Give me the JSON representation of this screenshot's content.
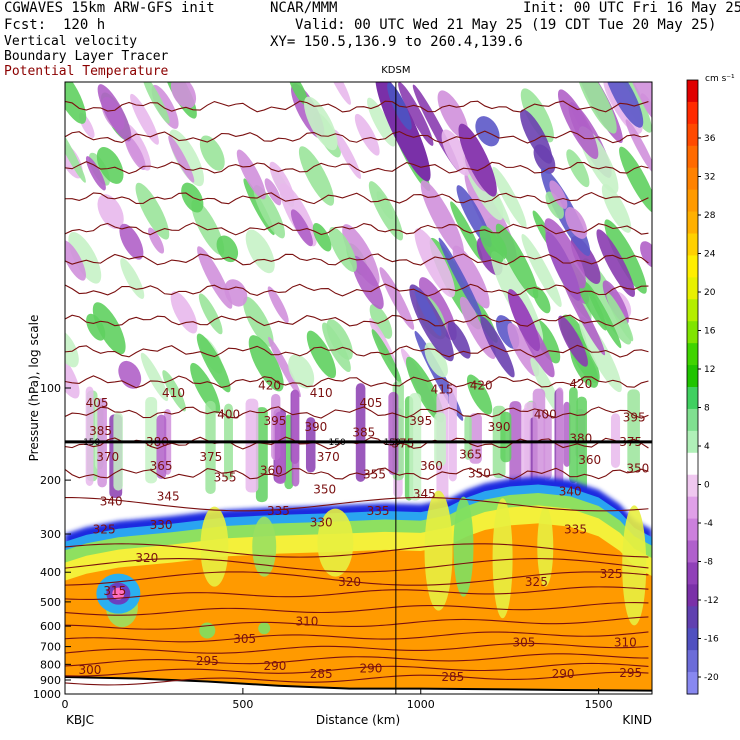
{
  "header": {
    "model": "CGWAVES 15km ARW-GFS init",
    "org": "NCAR/MMM",
    "init": "Init: 00 UTC Fri 16 May 25",
    "fcst": "Fcst:  120 h",
    "valid": "Valid: 00 UTC Wed 21 May 25 (19 CDT Tue 20 May 25)",
    "xy": "XY= 150.5,136.9 to 260.4,139.6",
    "fields": [
      {
        "name": "Vertical velocity",
        "color": "#000000"
      },
      {
        "name": "Boundary Layer Tracer",
        "color": "#000000"
      },
      {
        "name": "Potential Temperature",
        "color": "#8b0000"
      }
    ]
  },
  "chart_data": {
    "type": "heatmap",
    "title": "",
    "xlabel": "Distance (km)",
    "ylabel": "Pressure (hPa), log scale",
    "x_range": [
      0,
      1650
    ],
    "x_ticks": [
      0,
      500,
      1000,
      1500
    ],
    "y_scale": "log",
    "y_range": [
      1000,
      10
    ],
    "y_ticks": [
      100,
      200,
      300,
      400,
      500,
      600,
      700,
      800,
      900,
      1000
    ],
    "grid": false,
    "endpoints": {
      "left": "KBJC",
      "right": "KIND"
    },
    "station_marker": {
      "label": "KDSM",
      "x": 930
    },
    "tropopause_line": {
      "pressure": 150,
      "label": "150"
    },
    "colorbar": {
      "units": "cm s⁻¹",
      "labels": [
        36,
        32,
        28,
        24,
        20,
        16,
        12,
        8,
        4,
        0,
        -4,
        -8,
        -12,
        -16,
        -20
      ],
      "colors": [
        "#e00000",
        "#ff2a00",
        "#ff4a00",
        "#ff6a00",
        "#ff8200",
        "#ff9a00",
        "#ffb000",
        "#ffd000",
        "#ffee00",
        "#e8f000",
        "#b4ee00",
        "#80e400",
        "#40d400",
        "#20c400",
        "#40d060",
        "#80e090",
        "#b0f0b8",
        "#ffffff",
        "#f0c8f0",
        "#e0a0e8",
        "#cc80dc",
        "#b060cc",
        "#9040b8",
        "#7a30a8",
        "#6040b0",
        "#5050c0",
        "#6c6cd8",
        "#8888f0"
      ]
    },
    "theta_contours": [
      285,
      290,
      295,
      300,
      305,
      310,
      315,
      320,
      325,
      330,
      335,
      340,
      345,
      350,
      355,
      360,
      365,
      370,
      375,
      380,
      385,
      390,
      395,
      400,
      405,
      410,
      415,
      420
    ],
    "theta_labels": [
      {
        "value": 405,
        "x": 90,
        "p": 112
      },
      {
        "value": 410,
        "x": 305,
        "p": 104
      },
      {
        "value": 420,
        "x": 575,
        "p": 98
      },
      {
        "value": 410,
        "x": 720,
        "p": 104
      },
      {
        "value": 405,
        "x": 860,
        "p": 112
      },
      {
        "value": 415,
        "x": 1060,
        "p": 101
      },
      {
        "value": 420,
        "x": 1170,
        "p": 98
      },
      {
        "value": 420,
        "x": 1450,
        "p": 97
      },
      {
        "value": 400,
        "x": 460,
        "p": 122
      },
      {
        "value": 395,
        "x": 590,
        "p": 128
      },
      {
        "value": 390,
        "x": 705,
        "p": 134
      },
      {
        "value": 385,
        "x": 840,
        "p": 140
      },
      {
        "value": 395,
        "x": 1000,
        "p": 128
      },
      {
        "value": 390,
        "x": 1220,
        "p": 134
      },
      {
        "value": 400,
        "x": 1350,
        "p": 122
      },
      {
        "value": 395,
        "x": 1600,
        "p": 125
      },
      {
        "value": 385,
        "x": 100,
        "p": 138
      },
      {
        "value": 380,
        "x": 260,
        "p": 150
      },
      {
        "value": 375,
        "x": 950,
        "p": 152
      },
      {
        "value": 380,
        "x": 1450,
        "p": 146
      },
      {
        "value": 375,
        "x": 1590,
        "p": 150
      },
      {
        "value": 370,
        "x": 120,
        "p": 168
      },
      {
        "value": 375,
        "x": 410,
        "p": 168
      },
      {
        "value": 370,
        "x": 740,
        "p": 168
      },
      {
        "value": 365,
        "x": 270,
        "p": 180
      },
      {
        "value": 365,
        "x": 1140,
        "p": 165
      },
      {
        "value": 360,
        "x": 1475,
        "p": 172
      },
      {
        "value": 355,
        "x": 450,
        "p": 196
      },
      {
        "value": 360,
        "x": 580,
        "p": 186
      },
      {
        "value": 355,
        "x": 870,
        "p": 192
      },
      {
        "value": 360,
        "x": 1030,
        "p": 180
      },
      {
        "value": 350,
        "x": 1165,
        "p": 190
      },
      {
        "value": 350,
        "x": 1610,
        "p": 183
      },
      {
        "value": 340,
        "x": 130,
        "p": 235
      },
      {
        "value": 345,
        "x": 290,
        "p": 226
      },
      {
        "value": 350,
        "x": 730,
        "p": 215
      },
      {
        "value": 345,
        "x": 1010,
        "p": 222
      },
      {
        "value": 340,
        "x": 1420,
        "p": 218
      },
      {
        "value": 335,
        "x": 600,
        "p": 252
      },
      {
        "value": 335,
        "x": 880,
        "p": 252
      },
      {
        "value": 325,
        "x": 110,
        "p": 290
      },
      {
        "value": 330,
        "x": 270,
        "p": 280
      },
      {
        "value": 330,
        "x": 720,
        "p": 275
      },
      {
        "value": 335,
        "x": 1435,
        "p": 290
      },
      {
        "value": 320,
        "x": 230,
        "p": 360
      },
      {
        "value": 320,
        "x": 800,
        "p": 430
      },
      {
        "value": 325,
        "x": 1325,
        "p": 430
      },
      {
        "value": 325,
        "x": 1535,
        "p": 405
      },
      {
        "value": 315,
        "x": 140,
        "p": 460
      },
      {
        "value": 310,
        "x": 680,
        "p": 580
      },
      {
        "value": 305,
        "x": 505,
        "p": 660
      },
      {
        "value": 305,
        "x": 1290,
        "p": 680
      },
      {
        "value": 310,
        "x": 1575,
        "p": 680
      },
      {
        "value": 295,
        "x": 400,
        "p": 780
      },
      {
        "value": 290,
        "x": 590,
        "p": 810
      },
      {
        "value": 285,
        "x": 720,
        "p": 860
      },
      {
        "value": 290,
        "x": 860,
        "p": 825
      },
      {
        "value": 285,
        "x": 1090,
        "p": 880
      },
      {
        "value": 290,
        "x": 1400,
        "p": 860
      },
      {
        "value": 295,
        "x": 1590,
        "p": 855
      },
      {
        "value": 300,
        "x": 70,
        "p": 835
      }
    ]
  }
}
